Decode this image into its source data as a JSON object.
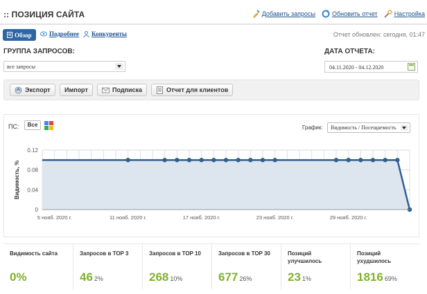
{
  "header": {
    "title": ":: ПОЗИЦИЯ САЙТА",
    "links": [
      {
        "label": "Добавить запросы",
        "icon": "add-queries-icon"
      },
      {
        "label": "Обновить отчет",
        "icon": "refresh-icon"
      },
      {
        "label": "Настройка",
        "icon": "settings-icon"
      }
    ]
  },
  "tabs": [
    {
      "label": "Обзор",
      "active": true,
      "icon": "overview-icon"
    },
    {
      "label": "Подробнее",
      "active": false,
      "icon": "details-icon"
    },
    {
      "label": "Конкуренты",
      "active": false,
      "icon": "competitors-icon"
    }
  ],
  "report_updated": "Отчет обновлен: сегодня, 01:47",
  "query_group": {
    "label": "ГРУППА ЗАПРОСОВ:",
    "value": "все запросы"
  },
  "report_date": {
    "label": "ДАТА ОТЧЕТА:",
    "value": "04.11.2020 - 04.12.2020"
  },
  "toolbar": {
    "export": "Экспорт",
    "import": "Импорт",
    "subscribe": "Подписка",
    "client_report": "Отчет для клиентов"
  },
  "chart_controls": {
    "ps_label": "ПС:",
    "ps_value": "Все",
    "graph_label": "График:",
    "graph_value": "Видимость / Посещаемость"
  },
  "chart_data": {
    "type": "area",
    "ylabel": "Видимость, %",
    "ylim": [
      0,
      0.12
    ],
    "yticks": [
      0,
      0.04,
      0.08,
      0.12
    ],
    "xticks": [
      "5 нояб. 2020 г.",
      "11 нояб. 2020 г.",
      "17 нояб. 2020 г.",
      "23 нояб. 2020 г.",
      "29 нояб. 2020 г."
    ],
    "x": [
      "2020-11-04",
      "2020-11-05",
      "2020-11-06",
      "2020-11-07",
      "2020-11-08",
      "2020-11-09",
      "2020-11-10",
      "2020-11-11",
      "2020-11-12",
      "2020-11-13",
      "2020-11-14",
      "2020-11-15",
      "2020-11-16",
      "2020-11-17",
      "2020-11-18",
      "2020-11-19",
      "2020-11-20",
      "2020-11-21",
      "2020-11-22",
      "2020-11-23",
      "2020-11-24",
      "2020-11-25",
      "2020-11-26",
      "2020-11-27",
      "2020-11-28",
      "2020-11-29",
      "2020-11-30",
      "2020-12-01",
      "2020-12-02",
      "2020-12-03",
      "2020-12-04"
    ],
    "values": [
      0.1,
      0.1,
      0.1,
      0.1,
      0.1,
      0.1,
      0.1,
      0.1,
      0.1,
      0.1,
      0.1,
      0.1,
      0.1,
      0.1,
      0.1,
      0.1,
      0.1,
      0.1,
      0.1,
      0.1,
      0.1,
      0.1,
      0.1,
      0.1,
      0.1,
      0.1,
      0.1,
      0.1,
      0.1,
      0.1,
      0
    ],
    "markers": [
      "2020-11-11",
      "2020-11-14",
      "2020-11-15",
      "2020-11-16",
      "2020-11-17",
      "2020-11-18",
      "2020-11-19",
      "2020-11-20",
      "2020-11-21",
      "2020-11-22",
      "2020-11-23",
      "2020-11-28",
      "2020-11-29",
      "2020-11-30",
      "2020-12-01",
      "2020-12-02",
      "2020-12-03",
      "2020-12-04"
    ],
    "line_color": "#2f5f8f",
    "fill_color": "#dde6ef",
    "grid": true
  },
  "stats": [
    {
      "label": "Видимость сайта",
      "value": "0%",
      "pct": ""
    },
    {
      "label": "Запросов в TOP 3",
      "value": "46",
      "pct": "2%"
    },
    {
      "label": "Запросов в TOP 10",
      "value": "268",
      "pct": "10%"
    },
    {
      "label": "Запросов в TOP 30",
      "value": "677",
      "pct": "26%"
    },
    {
      "label": "Позиций улучшилось",
      "value": "23",
      "pct": "1%"
    },
    {
      "label": "Позиций ухудшилось",
      "value": "1816",
      "pct": "69%"
    }
  ],
  "colors": {
    "accent": "#2d66a3",
    "stat_value": "#7fb22a",
    "link": "#1a4f8f"
  }
}
